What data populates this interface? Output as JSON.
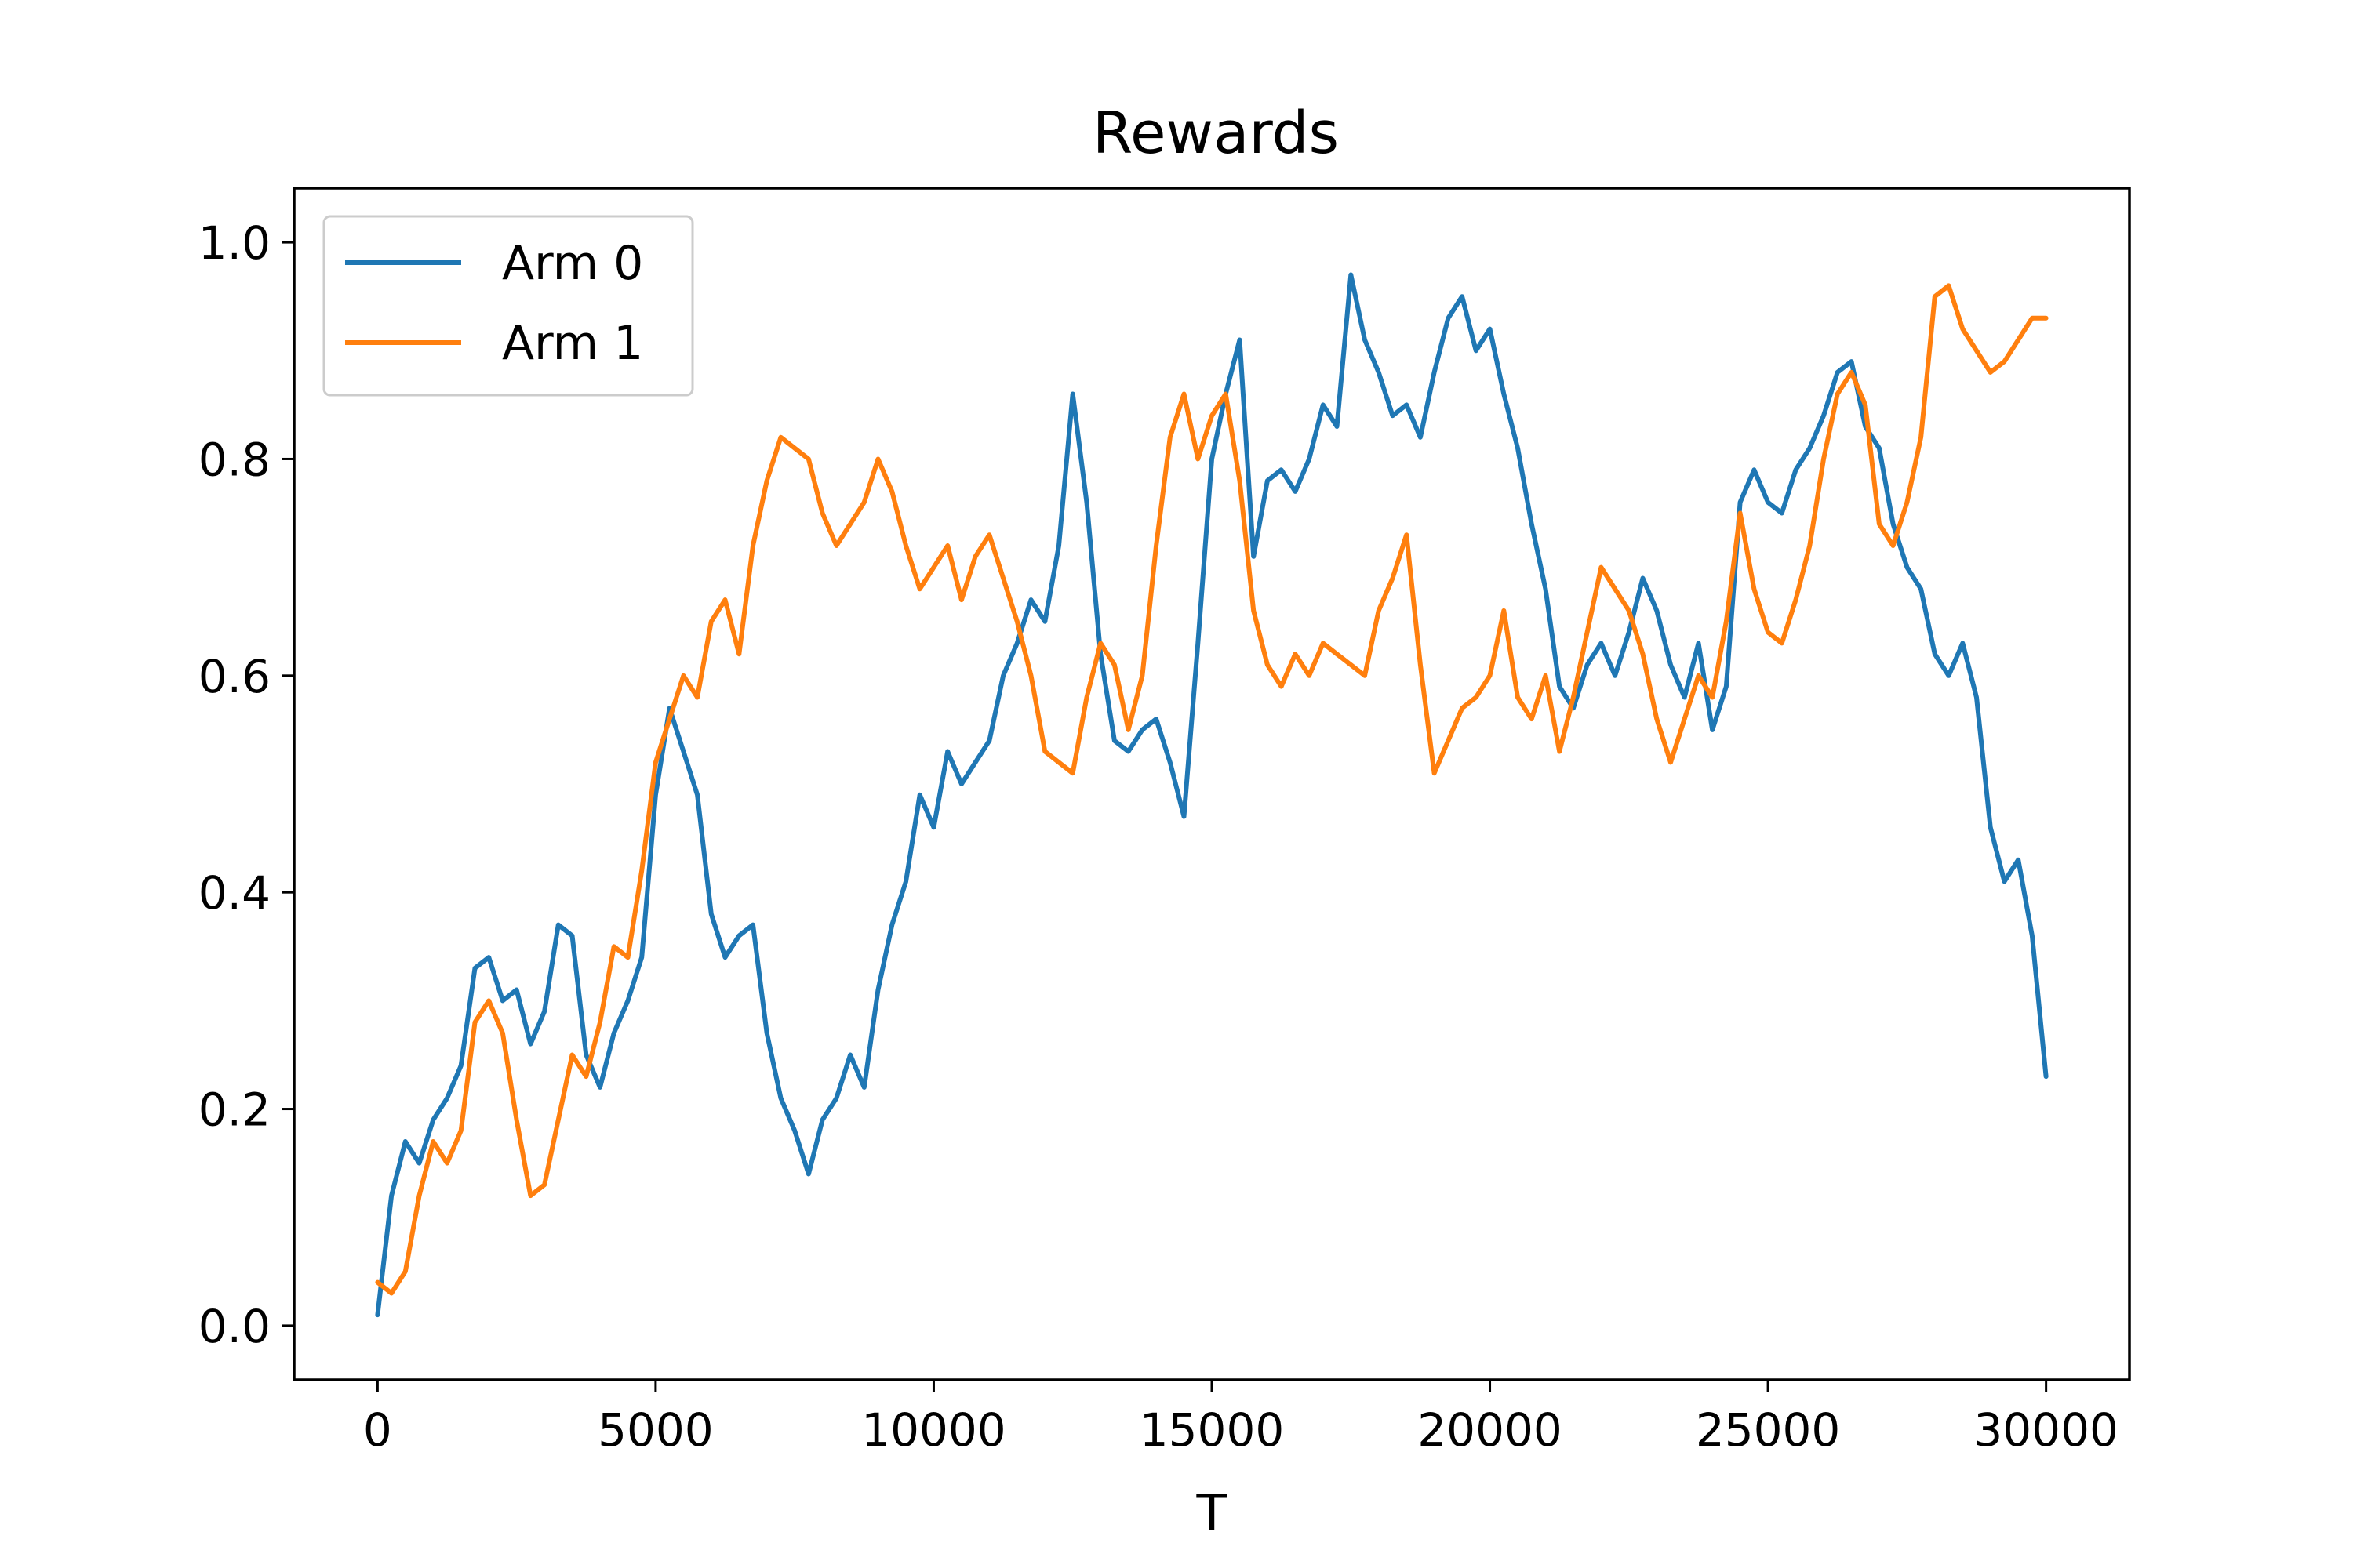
{
  "chart_data": {
    "type": "line",
    "title": "Rewards",
    "xlabel": "T",
    "ylabel": "",
    "xlim": [
      -1500,
      31500
    ],
    "ylim": [
      -0.05,
      1.05
    ],
    "xticks": [
      0,
      5000,
      10000,
      15000,
      20000,
      25000,
      30000
    ],
    "xtick_labels": [
      "0",
      "5000",
      "10000",
      "15000",
      "20000",
      "25000",
      "30000"
    ],
    "yticks": [
      0.0,
      0.2,
      0.4,
      0.6,
      0.8,
      1.0
    ],
    "ytick_labels": [
      "0.0",
      "0.2",
      "0.4",
      "0.6",
      "0.8",
      "1.0"
    ],
    "grid": false,
    "legend_position": "top-left",
    "series": [
      {
        "name": "Arm 0",
        "color": "#1f77b4",
        "x": [
          0,
          250,
          500,
          750,
          1000,
          1250,
          1500,
          1750,
          2000,
          2250,
          2500,
          2750,
          3000,
          3250,
          3500,
          3750,
          4000,
          4250,
          4500,
          4750,
          5000,
          5250,
          5500,
          5750,
          6000,
          6250,
          6500,
          6750,
          7000,
          7250,
          7500,
          7750,
          8000,
          8250,
          8500,
          8750,
          9000,
          9250,
          9500,
          9750,
          10000,
          10250,
          10500,
          10750,
          11000,
          11250,
          11500,
          11750,
          12000,
          12250,
          12500,
          12750,
          13000,
          13250,
          13500,
          13750,
          14000,
          14250,
          14500,
          14750,
          15000,
          15250,
          15500,
          15750,
          16000,
          16250,
          16500,
          16750,
          17000,
          17250,
          17500,
          17750,
          18000,
          18250,
          18500,
          18750,
          19000,
          19250,
          19500,
          19750,
          20000,
          20250,
          20500,
          20750,
          21000,
          21250,
          21500,
          21750,
          22000,
          22250,
          22500,
          22750,
          23000,
          23250,
          23500,
          23750,
          24000,
          24250,
          24500,
          24750,
          25000,
          25250,
          25500,
          25750,
          26000,
          26250,
          26500,
          26750,
          27000,
          27250,
          27500,
          27750,
          28000,
          28250,
          28500,
          28750,
          29000,
          29250,
          29500,
          29750,
          30000
        ],
        "y": [
          0.01,
          0.12,
          0.17,
          0.15,
          0.19,
          0.21,
          0.24,
          0.33,
          0.34,
          0.3,
          0.31,
          0.26,
          0.29,
          0.37,
          0.36,
          0.25,
          0.22,
          0.27,
          0.3,
          0.34,
          0.49,
          0.57,
          0.53,
          0.49,
          0.38,
          0.34,
          0.36,
          0.37,
          0.27,
          0.21,
          0.18,
          0.14,
          0.19,
          0.21,
          0.25,
          0.22,
          0.31,
          0.37,
          0.41,
          0.49,
          0.46,
          0.53,
          0.5,
          0.52,
          0.54,
          0.6,
          0.63,
          0.67,
          0.65,
          0.72,
          0.86,
          0.76,
          0.62,
          0.54,
          0.53,
          0.55,
          0.56,
          0.52,
          0.47,
          0.63,
          0.8,
          0.86,
          0.91,
          0.71,
          0.78,
          0.79,
          0.77,
          0.8,
          0.85,
          0.83,
          0.97,
          0.91,
          0.88,
          0.84,
          0.85,
          0.82,
          0.88,
          0.93,
          0.95,
          0.9,
          0.92,
          0.86,
          0.81,
          0.74,
          0.68,
          0.59,
          0.57,
          0.61,
          0.63,
          0.6,
          0.64,
          0.69,
          0.66,
          0.61,
          0.58,
          0.63,
          0.55,
          0.59,
          0.76,
          0.79,
          0.76,
          0.75,
          0.79,
          0.81,
          0.84,
          0.88,
          0.89,
          0.83,
          0.81,
          0.74,
          0.7,
          0.68,
          0.62,
          0.6,
          0.63,
          0.58,
          0.46,
          0.41,
          0.43,
          0.36,
          0.23
        ]
      },
      {
        "name": "Arm 1",
        "color": "#ff7f0e",
        "x": [
          0,
          250,
          500,
          750,
          1000,
          1250,
          1500,
          1750,
          2000,
          2250,
          2500,
          2750,
          3000,
          3250,
          3500,
          3750,
          4000,
          4250,
          4500,
          4750,
          5000,
          5250,
          5500,
          5750,
          6000,
          6250,
          6500,
          6750,
          7000,
          7250,
          7500,
          7750,
          8000,
          8250,
          8500,
          8750,
          9000,
          9250,
          9500,
          9750,
          10000,
          10250,
          10500,
          10750,
          11000,
          11250,
          11500,
          11750,
          12000,
          12250,
          12500,
          12750,
          13000,
          13250,
          13500,
          13750,
          14000,
          14250,
          14500,
          14750,
          15000,
          15250,
          15500,
          15750,
          16000,
          16250,
          16500,
          16750,
          17000,
          17250,
          17500,
          17750,
          18000,
          18250,
          18500,
          18750,
          19000,
          19250,
          19500,
          19750,
          20000,
          20250,
          20500,
          20750,
          21000,
          21250,
          21500,
          21750,
          22000,
          22250,
          22500,
          22750,
          23000,
          23250,
          23500,
          23750,
          24000,
          24250,
          24500,
          24750,
          25000,
          25250,
          25500,
          25750,
          26000,
          26250,
          26500,
          26750,
          27000,
          27250,
          27500,
          27750,
          28000,
          28250,
          28500,
          28750,
          29000,
          29250,
          29500,
          29750,
          30000
        ],
        "y": [
          0.04,
          0.03,
          0.05,
          0.12,
          0.17,
          0.15,
          0.18,
          0.28,
          0.3,
          0.27,
          0.19,
          0.12,
          0.13,
          0.19,
          0.25,
          0.23,
          0.28,
          0.35,
          0.34,
          0.42,
          0.52,
          0.56,
          0.6,
          0.58,
          0.65,
          0.67,
          0.62,
          0.72,
          0.78,
          0.82,
          0.81,
          0.8,
          0.75,
          0.72,
          0.74,
          0.76,
          0.8,
          0.77,
          0.72,
          0.68,
          0.7,
          0.72,
          0.67,
          0.71,
          0.73,
          0.69,
          0.65,
          0.6,
          0.53,
          0.52,
          0.51,
          0.58,
          0.63,
          0.61,
          0.55,
          0.6,
          0.72,
          0.82,
          0.86,
          0.8,
          0.84,
          0.86,
          0.78,
          0.66,
          0.61,
          0.59,
          0.62,
          0.6,
          0.63,
          0.62,
          0.61,
          0.6,
          0.66,
          0.69,
          0.73,
          0.61,
          0.51,
          0.54,
          0.57,
          0.58,
          0.6,
          0.66,
          0.58,
          0.56,
          0.6,
          0.53,
          0.58,
          0.64,
          0.7,
          0.68,
          0.66,
          0.62,
          0.56,
          0.52,
          0.56,
          0.6,
          0.58,
          0.65,
          0.75,
          0.68,
          0.64,
          0.63,
          0.67,
          0.72,
          0.8,
          0.86,
          0.88,
          0.85,
          0.74,
          0.72,
          0.76,
          0.82,
          0.95,
          0.96,
          0.92,
          0.9,
          0.88,
          0.89,
          0.91,
          0.93,
          0.93
        ]
      }
    ]
  }
}
